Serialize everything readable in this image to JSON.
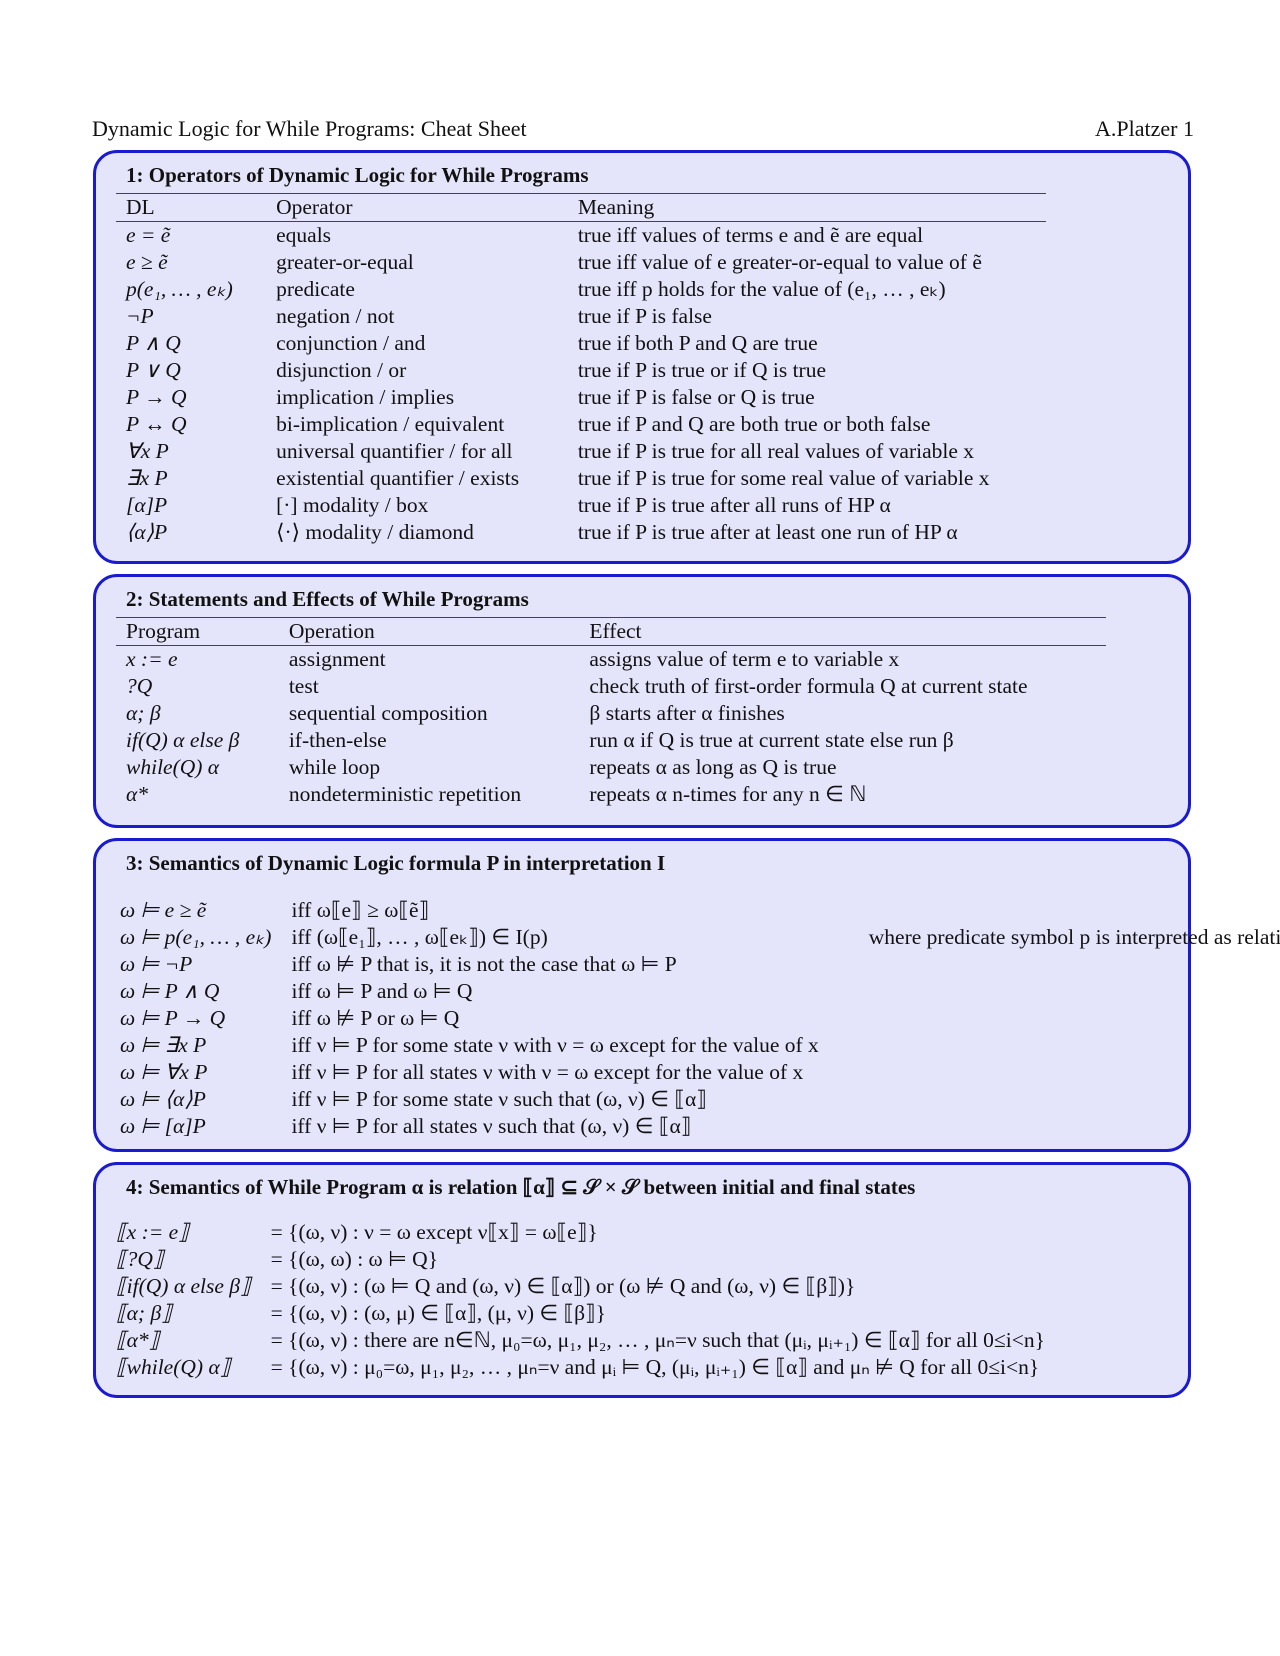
{
  "header": {
    "title": "Dynamic Logic for While Programs: Cheat Sheet",
    "author_page": "A.Platzer 1"
  },
  "sections": [
    {
      "title": "1: Operators of Dynamic Logic for While Programs",
      "columns": [
        "DL",
        "Operator",
        "Meaning"
      ],
      "rows": [
        [
          "e = ẽ",
          "equals",
          "true iff values of terms e and ẽ are equal"
        ],
        [
          "e ≥ ẽ",
          "greater-or-equal",
          "true iff value of e greater-or-equal to value of ẽ"
        ],
        [
          "p(e₁, … , eₖ)",
          "predicate",
          "true iff p holds for the value of (e₁, … , eₖ)"
        ],
        [
          "¬P",
          "negation / not",
          "true if P is false"
        ],
        [
          "P ∧ Q",
          "conjunction / and",
          "true if both P and Q are true"
        ],
        [
          "P ∨ Q",
          "disjunction / or",
          "true if P is true or if Q is true"
        ],
        [
          "P → Q",
          "implication / implies",
          "true if P is false or Q is true"
        ],
        [
          "P ↔ Q",
          "bi-implication / equivalent",
          "true if P and Q are both true or both false"
        ],
        [
          "∀x P",
          "universal quantifier / for all",
          "true if P is true for all real values of variable x"
        ],
        [
          "∃x P",
          "existential quantifier / exists",
          "true if P is true for some real value of variable x"
        ],
        [
          "[α]P",
          "[·] modality / box",
          "true if P is true after all runs of HP α"
        ],
        [
          "⟨α⟩P",
          "⟨·⟩ modality / diamond",
          "true if P is true after at least one run of HP α"
        ]
      ]
    },
    {
      "title": "2: Statements and Effects of While Programs",
      "columns": [
        "Program",
        "Operation",
        "Effect"
      ],
      "rows": [
        [
          "x := e",
          "assignment",
          "assigns value of term e to variable x"
        ],
        [
          "?Q",
          "test",
          "check truth of first-order formula Q at current state"
        ],
        [
          "α; β",
          "sequential composition",
          "β starts after α finishes"
        ],
        [
          "if(Q) α else β",
          "if-then-else",
          "run α if Q is true at current state else run β"
        ],
        [
          "while(Q) α",
          "while loop",
          "repeats α as long as Q is true"
        ],
        [
          "α*",
          "nondeterministic repetition",
          "repeats α n-times for any n ∈ ℕ"
        ]
      ]
    },
    {
      "title": "3: Semantics of Dynamic Logic formula P in interpretation I",
      "rows": [
        [
          "ω ⊨ e ≥ ẽ",
          "iff ω⟦e⟧ ≥ ω⟦ẽ⟧",
          ""
        ],
        [
          "ω ⊨ p(e₁, … , eₖ)",
          "iff (ω⟦e₁⟧, … , ω⟦eₖ⟧) ∈ I(p)",
          "where predicate symbol p is interpreted as relation I(p)"
        ],
        [
          "ω ⊨ ¬P",
          "iff ω ⊭ P that is, it is not the case that ω ⊨ P",
          ""
        ],
        [
          "ω ⊨ P ∧ Q",
          "iff ω ⊨ P and ω ⊨ Q",
          ""
        ],
        [
          "ω ⊨ P → Q",
          "iff ω ⊭ P or ω ⊨ Q",
          ""
        ],
        [
          "ω ⊨ ∃x P",
          "iff ν ⊨ P for some state ν with ν = ω except for the value of x",
          ""
        ],
        [
          "ω ⊨ ∀x P",
          "iff ν ⊨ P for all states ν with ν = ω except for the value of x",
          ""
        ],
        [
          "ω ⊨ ⟨α⟩P",
          "iff ν ⊨ P for some state ν such that (ω, ν) ∈ ⟦α⟧",
          ""
        ],
        [
          "ω ⊨ [α]P",
          "iff ν ⊨ P for all states ν such that (ω, ν) ∈ ⟦α⟧",
          ""
        ]
      ]
    },
    {
      "title": "4: Semantics of While Program α is relation ⟦α⟧ ⊆ 𝒮 × 𝒮 between initial and final states",
      "rows": [
        [
          "⟦x := e⟧",
          "= {(ω, ν) : ν = ω except ν⟦x⟧ = ω⟦e⟧}"
        ],
        [
          "⟦?Q⟧",
          "= {(ω, ω) : ω ⊨ Q}"
        ],
        [
          "⟦if(Q) α else β⟧",
          "= {(ω, ν) : (ω ⊨ Q and (ω, ν) ∈ ⟦α⟧) or (ω ⊭ Q and (ω, ν) ∈ ⟦β⟧)}"
        ],
        [
          "⟦α; β⟧",
          "= {(ω, ν) : (ω, μ) ∈ ⟦α⟧, (μ, ν) ∈ ⟦β⟧}"
        ],
        [
          "⟦α*⟧",
          "= {(ω, ν) : there are n∈ℕ, μ₀=ω, μ₁, μ₂, … , μₙ=ν such that (μᵢ, μᵢ₊₁) ∈ ⟦α⟧ for all 0≤i<n}"
        ],
        [
          "⟦while(Q) α⟧",
          "= {(ω, ν) : μ₀=ω, μ₁, μ₂, … , μₙ=ν and μᵢ ⊨ Q, (μᵢ, μᵢ₊₁) ∈ ⟦α⟧ and μₙ ⊭ Q for all 0≤i<n}"
        ]
      ]
    }
  ],
  "colors": {
    "box_border": "#1a1ad0",
    "box_fill": "#e4e4fb"
  }
}
